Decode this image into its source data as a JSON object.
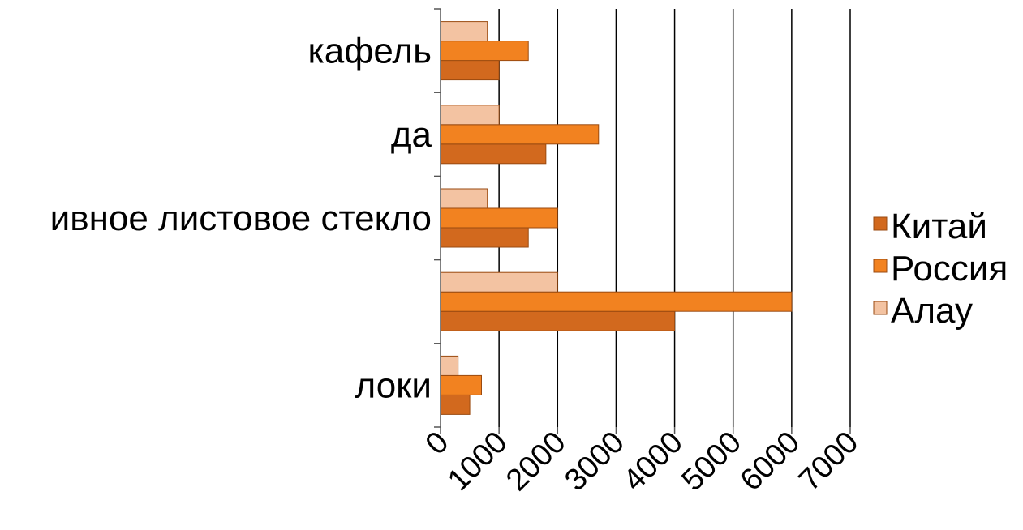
{
  "chart_data": {
    "type": "bar",
    "orientation": "horizontal",
    "categories": [
      "локи",
      "",
      "ивное листовое стекло",
      "да",
      "кафель"
    ],
    "series": [
      {
        "name": "Китай",
        "values": [
          500,
          4000,
          1500,
          1800,
          1000
        ],
        "color": "#D2691E"
      },
      {
        "name": "Россия",
        "values": [
          700,
          6000,
          2000,
          2700,
          1500
        ],
        "color": "#F28220"
      },
      {
        "name": "Алау",
        "values": [
          300,
          2000,
          800,
          1000,
          800
        ],
        "color": "#F3C3A2"
      }
    ],
    "x_ticks": [
      "0",
      "1000",
      "2000",
      "3000",
      "4000",
      "5000",
      "6000",
      "7000"
    ],
    "xlim": [
      0,
      7000
    ],
    "grid": true,
    "legend_position": "right",
    "title": "",
    "xlabel": "",
    "ylabel": ""
  }
}
